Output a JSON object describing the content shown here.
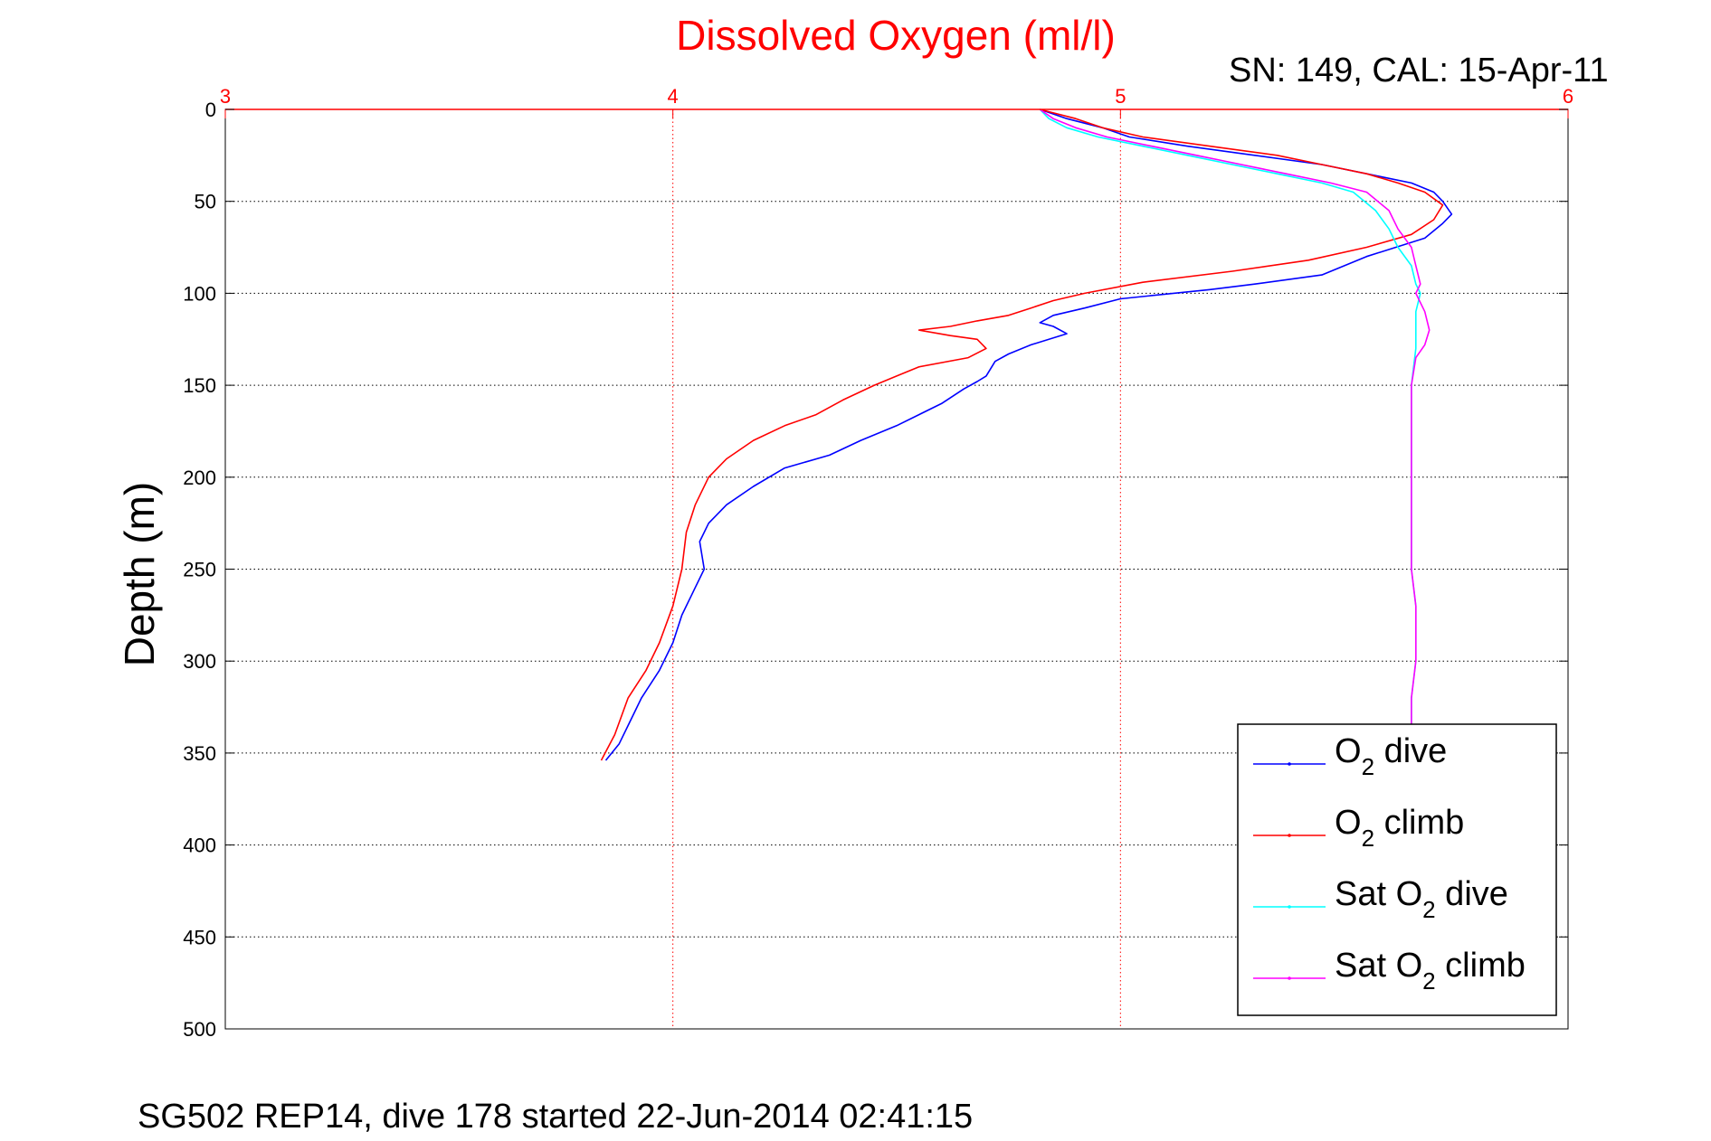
{
  "chart_data": {
    "type": "line",
    "title": "Dissolved Oxygen (ml/l)",
    "subtitle": "SN: 149, CAL: 15-Apr-11",
    "footer": "SG502 REP14, dive 178 started 22-Jun-2014 02:41:15",
    "xlabel": "",
    "ylabel": "Depth (m)",
    "xlim": [
      3,
      6
    ],
    "ylim": [
      0,
      500
    ],
    "y_reversed": true,
    "x_axis_position": "top",
    "x_ticks": [
      3,
      4,
      5,
      6
    ],
    "x_tick_labels": [
      "3",
      "4",
      "5",
      "6"
    ],
    "y_ticks": [
      0,
      50,
      100,
      150,
      200,
      250,
      300,
      350,
      400,
      450,
      500
    ],
    "y_tick_labels": [
      "0",
      "50",
      "100",
      "150",
      "200",
      "250",
      "300",
      "350",
      "400",
      "450",
      "500"
    ],
    "grid": true,
    "legend_position": "bottom-right",
    "colors": {
      "title": "#ff0000",
      "x_axis": "#ff0000",
      "o2_dive": "#0000ff",
      "o2_climb": "#ff0000",
      "sat_dive": "#00ffff",
      "sat_climb": "#ff00ff"
    },
    "series": [
      {
        "key": "o2_dive",
        "name": "O2 dive",
        "legend_base": "O",
        "legend_sub": "2",
        "legend_suffix": " dive",
        "x": [
          4.82,
          4.88,
          4.96,
          5.02,
          5.15,
          5.3,
          5.45,
          5.55,
          5.65,
          5.7,
          5.72,
          5.74,
          5.72,
          5.68,
          5.55,
          5.45,
          5.3,
          5.2,
          5.0,
          4.92,
          4.85,
          4.82,
          4.85,
          4.88,
          4.8,
          4.75,
          4.72,
          4.7,
          4.68,
          4.65,
          4.6,
          4.55,
          4.5,
          4.42,
          4.35,
          4.25,
          4.18,
          4.12,
          4.08,
          4.06,
          4.07,
          4.05,
          4.02,
          4.0,
          3.97,
          3.93,
          3.9,
          3.88,
          3.85
        ],
        "y": [
          0,
          5,
          10,
          15,
          20,
          25,
          30,
          35,
          40,
          45,
          50,
          57,
          62,
          70,
          80,
          90,
          95,
          98,
          103,
          108,
          112,
          116,
          118,
          122,
          128,
          133,
          137,
          145,
          148,
          152,
          160,
          166,
          172,
          180,
          188,
          195,
          205,
          215,
          225,
          235,
          250,
          260,
          275,
          290,
          305,
          320,
          335,
          345,
          354
        ]
      },
      {
        "key": "o2_climb",
        "name": "O2 climb",
        "legend_base": "O",
        "legend_sub": "2",
        "legend_suffix": " climb",
        "x": [
          4.82,
          4.9,
          4.96,
          5.05,
          5.2,
          5.35,
          5.45,
          5.55,
          5.62,
          5.68,
          5.72,
          5.7,
          5.65,
          5.55,
          5.42,
          5.25,
          5.05,
          4.92,
          4.85,
          4.8,
          4.75,
          4.68,
          4.62,
          4.55,
          4.62,
          4.68,
          4.7,
          4.66,
          4.55,
          4.5,
          4.45,
          4.38,
          4.32,
          4.25,
          4.18,
          4.12,
          4.08,
          4.05,
          4.03,
          4.02,
          4.0,
          3.97,
          3.94,
          3.9,
          3.87,
          3.84
        ],
        "y": [
          0,
          5,
          10,
          15,
          20,
          25,
          30,
          35,
          40,
          45,
          52,
          60,
          68,
          75,
          82,
          88,
          94,
          100,
          104,
          108,
          112,
          115,
          118,
          120,
          123,
          125,
          130,
          135,
          140,
          145,
          150,
          158,
          166,
          172,
          180,
          190,
          200,
          215,
          230,
          250,
          270,
          290,
          305,
          320,
          340,
          354
        ]
      },
      {
        "key": "sat_dive",
        "name": "Sat O2 dive",
        "legend_base": "Sat O",
        "legend_sub": "2",
        "legend_suffix": " dive",
        "x": [
          4.82,
          4.84,
          4.88,
          4.95,
          5.05,
          5.15,
          5.25,
          5.35,
          5.45,
          5.52,
          5.57,
          5.6,
          5.62,
          5.65,
          5.66,
          5.67,
          5.66,
          5.66,
          5.65,
          5.65,
          5.65,
          5.66,
          5.66,
          5.66,
          5.65,
          5.65
        ],
        "y": [
          0,
          5,
          10,
          15,
          20,
          25,
          30,
          35,
          40,
          45,
          55,
          65,
          75,
          85,
          95,
          100,
          110,
          130,
          150,
          200,
          250,
          270,
          290,
          300,
          320,
          340
        ]
      },
      {
        "key": "sat_climb",
        "name": "Sat O2 climb",
        "legend_base": "Sat O",
        "legend_sub": "2",
        "legend_suffix": " climb",
        "x": [
          4.82,
          4.85,
          4.9,
          4.97,
          5.07,
          5.17,
          5.27,
          5.37,
          5.47,
          5.55,
          5.6,
          5.62,
          5.65,
          5.66,
          5.67,
          5.66,
          5.68,
          5.69,
          5.68,
          5.66,
          5.65,
          5.65,
          5.65,
          5.66,
          5.66,
          5.66,
          5.65,
          5.65
        ],
        "y": [
          0,
          5,
          10,
          15,
          20,
          25,
          30,
          35,
          40,
          45,
          55,
          65,
          75,
          85,
          95,
          100,
          110,
          120,
          128,
          135,
          150,
          200,
          250,
          270,
          290,
          300,
          320,
          340
        ]
      }
    ]
  }
}
